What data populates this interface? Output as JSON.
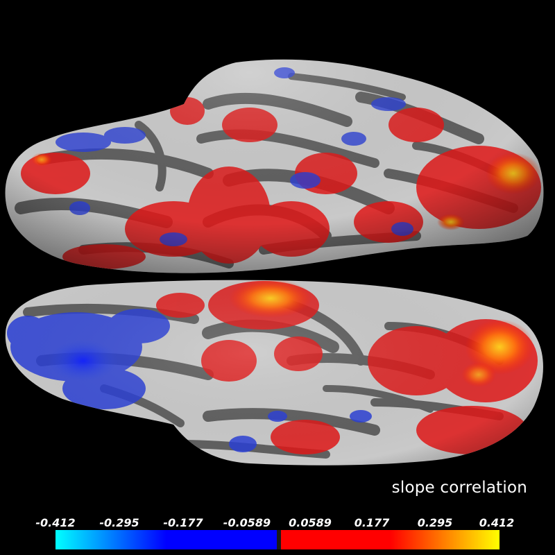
{
  "metric_label": "slope correlation",
  "colorbar": {
    "ticks": [
      "-0.412",
      "-0.295",
      "-0.177",
      "-0.0589",
      "0.0589",
      "0.177",
      "0.295",
      "0.412"
    ],
    "values": [
      -0.412,
      -0.295,
      -0.177,
      -0.0589,
      0.0589,
      0.177,
      0.295,
      0.412
    ],
    "colors": {
      "min": "#00ffff",
      "neg": "#0000ff",
      "pos": "#ff0000",
      "max": "#ffff00"
    }
  },
  "surface_colors": {
    "background": "#000000",
    "sulcal_gray": "#606060",
    "gyral_light": "#c8c8c8",
    "positive_red": "#e01818",
    "negative_blue": "#2a3fd6",
    "peak_orange": "#ff8a10"
  }
}
